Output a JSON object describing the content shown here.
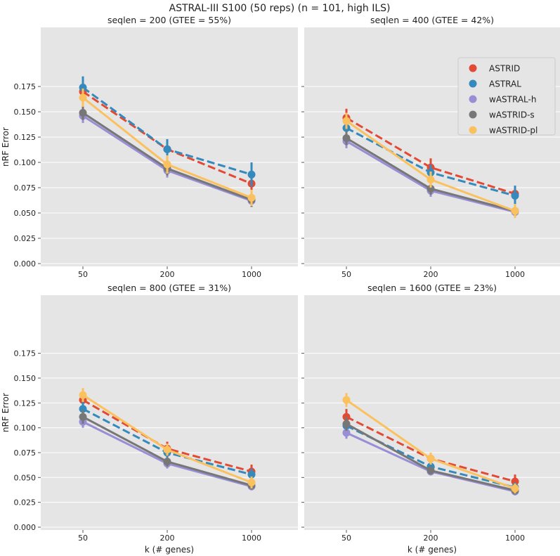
{
  "chart_data": {
    "type": "line",
    "title": "ASTRAL-III S100 (50 reps) (n = 101, high ILS)",
    "xlabel": "k (# genes)",
    "ylabel": "nRF Error",
    "categories": [
      "50",
      "200",
      "1000"
    ],
    "yticks": [
      "0.000",
      "0.025",
      "0.050",
      "0.075",
      "0.100",
      "0.125",
      "0.150",
      "0.175"
    ],
    "ytick_values": [
      0,
      0.025,
      0.05,
      0.075,
      0.1,
      0.125,
      0.15,
      0.175
    ],
    "grid": true,
    "legend_placement": "top-right of second panel",
    "series_style": [
      {
        "name": "ASTRID",
        "color": "#E24A33",
        "dashed": true
      },
      {
        "name": "ASTRAL",
        "color": "#348ABD",
        "dashed": true
      },
      {
        "name": "wASTRAL-h",
        "color": "#988ED5",
        "dashed": false
      },
      {
        "name": "wASTRID-s",
        "color": "#777777",
        "dashed": false
      },
      {
        "name": "wASTRID-pl",
        "color": "#FBC15E",
        "dashed": false
      }
    ],
    "panels": [
      {
        "title": "seqlen = 200 (GTEE = 55%)",
        "series": [
          {
            "name": "ASTRID",
            "values": [
              0.17,
              0.113,
              0.079
            ],
            "err": [
              0.01,
              0.009,
              0.009
            ]
          },
          {
            "name": "ASTRAL",
            "values": [
              0.174,
              0.113,
              0.088
            ],
            "err": [
              0.011,
              0.01,
              0.012
            ]
          },
          {
            "name": "wASTRAL-h",
            "values": [
              0.146,
              0.092,
              0.062
            ],
            "err": [
              0.007,
              0.007,
              0.006
            ]
          },
          {
            "name": "wASTRID-s",
            "values": [
              0.149,
              0.094,
              0.063
            ],
            "err": [
              0.007,
              0.007,
              0.007
            ]
          },
          {
            "name": "wASTRID-pl",
            "values": [
              0.164,
              0.098,
              0.065
            ],
            "err": [
              0.009,
              0.009,
              0.008
            ]
          }
        ]
      },
      {
        "title": "seqlen = 400 (GTEE = 42%)",
        "series": [
          {
            "name": "ASTRID",
            "values": [
              0.144,
              0.095,
              0.069
            ],
            "err": [
              0.009,
              0.009,
              0.008
            ]
          },
          {
            "name": "ASTRAL",
            "values": [
              0.134,
              0.09,
              0.067
            ],
            "err": [
              0.009,
              0.008,
              0.01
            ]
          },
          {
            "name": "wASTRAL-h",
            "values": [
              0.121,
              0.072,
              0.051
            ],
            "err": [
              0.007,
              0.006,
              0.005
            ]
          },
          {
            "name": "wASTRID-s",
            "values": [
              0.124,
              0.074,
              0.052
            ],
            "err": [
              0.007,
              0.006,
              0.005
            ]
          },
          {
            "name": "wASTRID-pl",
            "values": [
              0.141,
              0.083,
              0.052
            ],
            "err": [
              0.008,
              0.008,
              0.007
            ]
          }
        ]
      },
      {
        "title": "seqlen = 800 (GTEE = 31%)",
        "series": [
          {
            "name": "ASTRID",
            "values": [
              0.128,
              0.079,
              0.056
            ],
            "err": [
              0.008,
              0.007,
              0.007
            ]
          },
          {
            "name": "ASTRAL",
            "values": [
              0.119,
              0.075,
              0.053
            ],
            "err": [
              0.008,
              0.007,
              0.006
            ]
          },
          {
            "name": "wASTRAL-h",
            "values": [
              0.106,
              0.064,
              0.041
            ],
            "err": [
              0.006,
              0.005,
              0.004
            ]
          },
          {
            "name": "wASTRID-s",
            "values": [
              0.111,
              0.066,
              0.042
            ],
            "err": [
              0.007,
              0.005,
              0.004
            ]
          },
          {
            "name": "wASTRID-pl",
            "values": [
              0.133,
              0.078,
              0.045
            ],
            "err": [
              0.007,
              0.006,
              0.006
            ]
          }
        ]
      },
      {
        "title": "seqlen = 1600 (GTEE = 23%)",
        "series": [
          {
            "name": "ASTRID",
            "values": [
              0.111,
              0.069,
              0.046
            ],
            "err": [
              0.008,
              0.006,
              0.007
            ]
          },
          {
            "name": "ASTRAL",
            "values": [
              0.102,
              0.061,
              0.04
            ],
            "err": [
              0.007,
              0.005,
              0.005
            ]
          },
          {
            "name": "wASTRAL-h",
            "values": [
              0.095,
              0.056,
              0.036
            ],
            "err": [
              0.006,
              0.004,
              0.004
            ]
          },
          {
            "name": "wASTRID-s",
            "values": [
              0.104,
              0.057,
              0.037
            ],
            "err": [
              0.007,
              0.004,
              0.004
            ]
          },
          {
            "name": "wASTRID-pl",
            "values": [
              0.128,
              0.069,
              0.039
            ],
            "err": [
              0.007,
              0.006,
              0.005
            ]
          }
        ]
      }
    ]
  }
}
